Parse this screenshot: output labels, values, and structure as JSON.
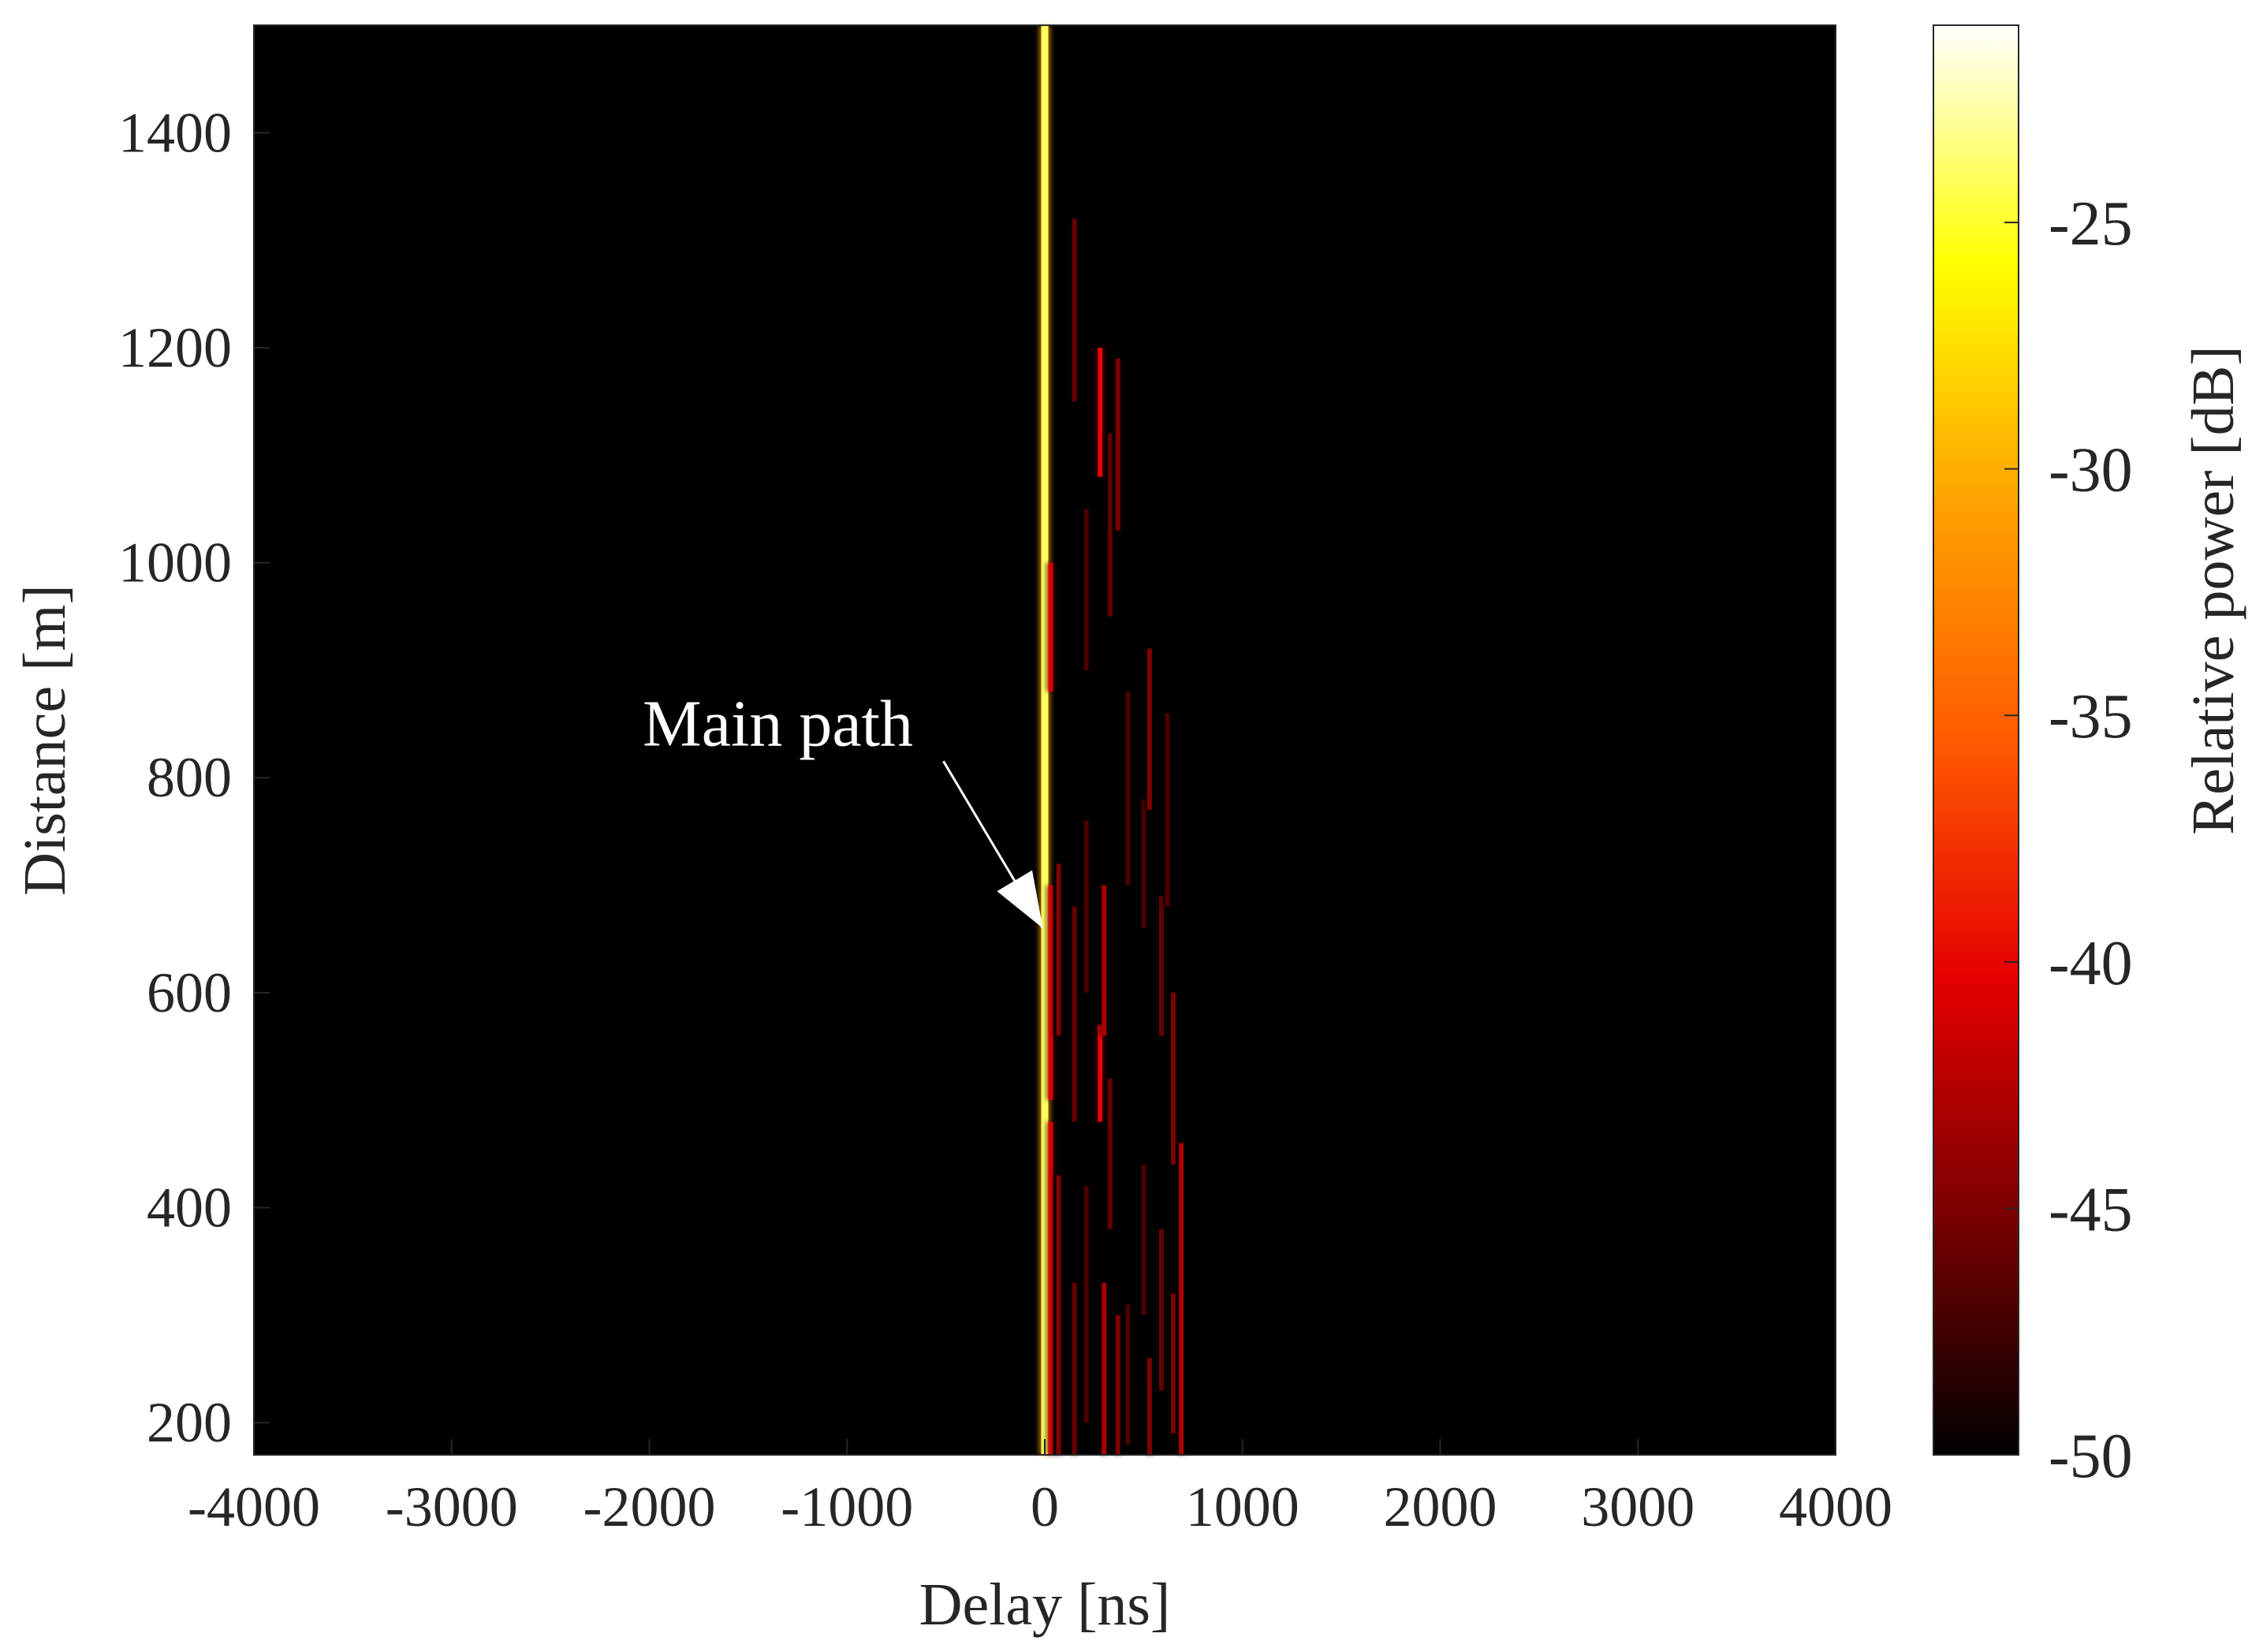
{
  "chart_data": {
    "type": "heatmap",
    "title": "",
    "xlabel": "Delay [ns]",
    "ylabel": "Distance [m]",
    "xlim": [
      -4000,
      4000
    ],
    "ylim": [
      170,
      1500
    ],
    "xticks": [
      -4000,
      -3000,
      -2000,
      -1000,
      0,
      1000,
      2000,
      3000,
      4000
    ],
    "yticks": [
      200,
      400,
      600,
      800,
      1000,
      1200,
      1400
    ],
    "colorbar": {
      "label": "Relative power [dB]",
      "range": [
        -50,
        -21
      ],
      "ticks": [
        -25,
        -30,
        -35,
        -40,
        -45,
        -50
      ],
      "colormap": [
        "#000000",
        "#7a0000",
        "#e50000",
        "#ff5a00",
        "#ffa200",
        "#ffff00",
        "#ffffff"
      ]
    },
    "background_db": -50,
    "paths": [
      {
        "delay_ns": 0,
        "db": -24,
        "segments": [
          [
            170,
            1500
          ]
        ]
      },
      {
        "delay_ns": 30,
        "db": -41,
        "segments": [
          [
            170,
            480
          ],
          [
            500,
            700
          ],
          [
            880,
            1000
          ]
        ]
      },
      {
        "delay_ns": 70,
        "db": -45,
        "segments": [
          [
            170,
            430
          ],
          [
            560,
            720
          ]
        ]
      },
      {
        "delay_ns": 150,
        "db": -46,
        "segments": [
          [
            170,
            330
          ],
          [
            480,
            680
          ],
          [
            1150,
            1320
          ]
        ]
      },
      {
        "delay_ns": 210,
        "db": -47,
        "segments": [
          [
            200,
            420
          ],
          [
            600,
            760
          ],
          [
            900,
            1050
          ]
        ]
      },
      {
        "delay_ns": 280,
        "db": -40,
        "segments": [
          [
            1080,
            1200
          ],
          [
            480,
            570
          ]
        ]
      },
      {
        "delay_ns": 300,
        "db": -43,
        "segments": [
          [
            170,
            330
          ],
          [
            560,
            700
          ]
        ]
      },
      {
        "delay_ns": 330,
        "db": -46,
        "segments": [
          [
            380,
            520
          ],
          [
            950,
            1120
          ]
        ]
      },
      {
        "delay_ns": 370,
        "db": -45,
        "segments": [
          [
            1030,
            1190
          ],
          [
            170,
            300
          ]
        ]
      },
      {
        "delay_ns": 420,
        "db": -47,
        "segments": [
          [
            700,
            880
          ],
          [
            180,
            310
          ]
        ]
      },
      {
        "delay_ns": 500,
        "db": -47,
        "segments": [
          [
            300,
            440
          ],
          [
            660,
            780
          ]
        ]
      },
      {
        "delay_ns": 530,
        "db": -45,
        "segments": [
          [
            770,
            920
          ],
          [
            170,
            260
          ]
        ]
      },
      {
        "delay_ns": 590,
        "db": -46,
        "segments": [
          [
            560,
            690
          ],
          [
            230,
            380
          ]
        ]
      },
      {
        "delay_ns": 620,
        "db": -47,
        "segments": [
          [
            680,
            860
          ]
        ]
      },
      {
        "delay_ns": 650,
        "db": -45,
        "segments": [
          [
            440,
            600
          ],
          [
            190,
            320
          ]
        ]
      },
      {
        "delay_ns": 690,
        "db": -43,
        "segments": [
          [
            170,
            460
          ]
        ]
      }
    ],
    "annotations": [
      {
        "text": "Main path",
        "x": -1350,
        "y": 830,
        "arrow_to": [
          -10,
          660
        ]
      }
    ]
  }
}
